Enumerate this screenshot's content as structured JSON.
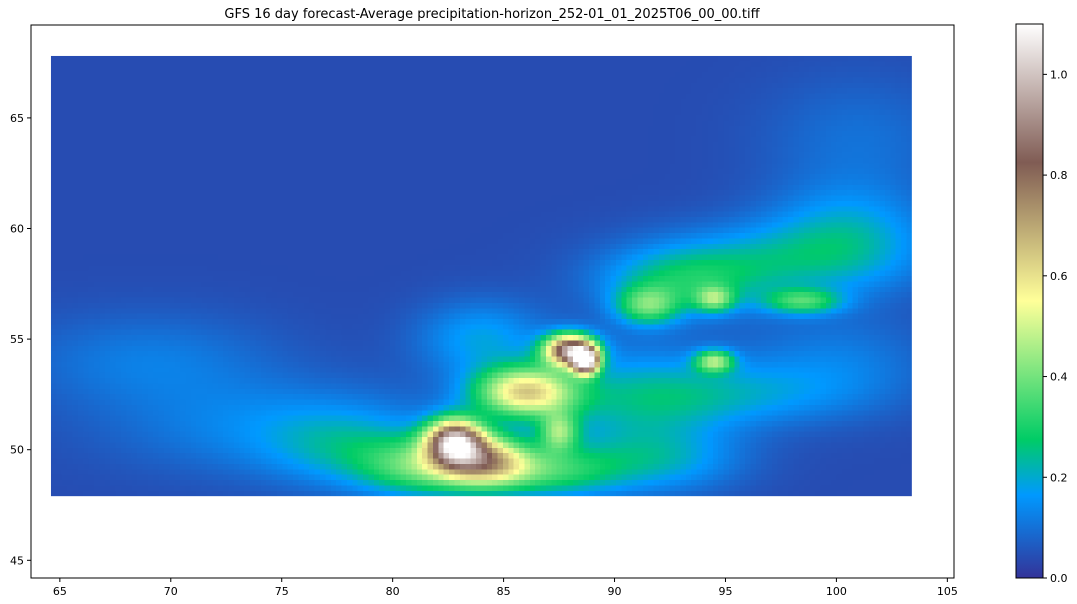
{
  "chart_data": {
    "type": "heatmap",
    "title": "GFS 16 day forecast-Average precipitation-horizon_252-01_01_2025T06_00_00.tiff",
    "xlabel": "",
    "ylabel": "",
    "xlim": [
      63.7,
      105.3
    ],
    "ylim": [
      44.2,
      69.2
    ],
    "data_extent": {
      "x": [
        64.6,
        103.4
      ],
      "y": [
        47.9,
        67.8
      ]
    },
    "x_ticks": [
      "65",
      "70",
      "75",
      "80",
      "85",
      "90",
      "95",
      "100",
      "105"
    ],
    "y_ticks": [
      "45",
      "50",
      "55",
      "60",
      "65"
    ],
    "colorbar": {
      "colormap": "terrain",
      "range": [
        0.0,
        1.1
      ],
      "ticks": [
        "0.0",
        "0.2",
        "0.4",
        "0.6",
        "0.8",
        "1.0"
      ]
    },
    "background_level": 0.04,
    "features": [
      {
        "x": 82.8,
        "y": 50.4,
        "value": 0.8,
        "sx": 0.9,
        "sy": 0.7
      },
      {
        "x": 88.0,
        "y": 54.5,
        "value": 0.85,
        "sx": 0.8,
        "sy": 0.5
      },
      {
        "x": 88.7,
        "y": 54.0,
        "value": 0.95,
        "sx": 0.4,
        "sy": 0.4
      },
      {
        "x": 86.0,
        "y": 52.6,
        "value": 0.55,
        "sx": 1.6,
        "sy": 0.8
      },
      {
        "x": 84.2,
        "y": 49.5,
        "value": 0.5,
        "sx": 1.4,
        "sy": 0.8
      },
      {
        "x": 81.5,
        "y": 49.2,
        "value": 0.3,
        "sx": 2.0,
        "sy": 0.9
      },
      {
        "x": 87.0,
        "y": 49.0,
        "value": 0.25,
        "sx": 2.2,
        "sy": 0.8
      },
      {
        "x": 94.5,
        "y": 54.0,
        "value": 0.35,
        "sx": 0.6,
        "sy": 0.35
      },
      {
        "x": 91.5,
        "y": 56.5,
        "value": 0.28,
        "sx": 1.0,
        "sy": 0.6
      },
      {
        "x": 94.5,
        "y": 56.8,
        "value": 0.28,
        "sx": 0.6,
        "sy": 0.4
      },
      {
        "x": 98.5,
        "y": 56.7,
        "value": 0.25,
        "sx": 1.2,
        "sy": 0.4
      },
      {
        "x": 87.5,
        "y": 50.8,
        "value": 0.3,
        "sx": 0.6,
        "sy": 0.6
      },
      {
        "x": 93.0,
        "y": 57.6,
        "value": 0.18,
        "sx": 2.5,
        "sy": 1.0
      },
      {
        "x": 97.0,
        "y": 58.5,
        "value": 0.15,
        "sx": 4.0,
        "sy": 1.2
      },
      {
        "x": 100.5,
        "y": 59.8,
        "value": 0.14,
        "sx": 2.5,
        "sy": 1.5
      },
      {
        "x": 91.0,
        "y": 52.0,
        "value": 0.14,
        "sx": 3.0,
        "sy": 2.0
      },
      {
        "x": 95.0,
        "y": 52.5,
        "value": 0.12,
        "sx": 4.0,
        "sy": 1.0
      },
      {
        "x": 75.0,
        "y": 51.0,
        "value": 0.1,
        "sx": 5.0,
        "sy": 1.5
      },
      {
        "x": 69.0,
        "y": 54.0,
        "value": 0.08,
        "sx": 4.0,
        "sy": 1.5
      },
      {
        "x": 78.0,
        "y": 50.0,
        "value": 0.12,
        "sx": 2.5,
        "sy": 1.2
      },
      {
        "x": 84.0,
        "y": 55.0,
        "value": 0.14,
        "sx": 2.0,
        "sy": 1.2
      },
      {
        "x": 92.0,
        "y": 49.5,
        "value": 0.12,
        "sx": 2.5,
        "sy": 1.0
      },
      {
        "x": 101.0,
        "y": 64.0,
        "value": 0.06,
        "sx": 3.0,
        "sy": 2.0
      },
      {
        "x": 100.0,
        "y": 54.0,
        "value": 0.08,
        "sx": 3.0,
        "sy": 1.5
      }
    ]
  }
}
